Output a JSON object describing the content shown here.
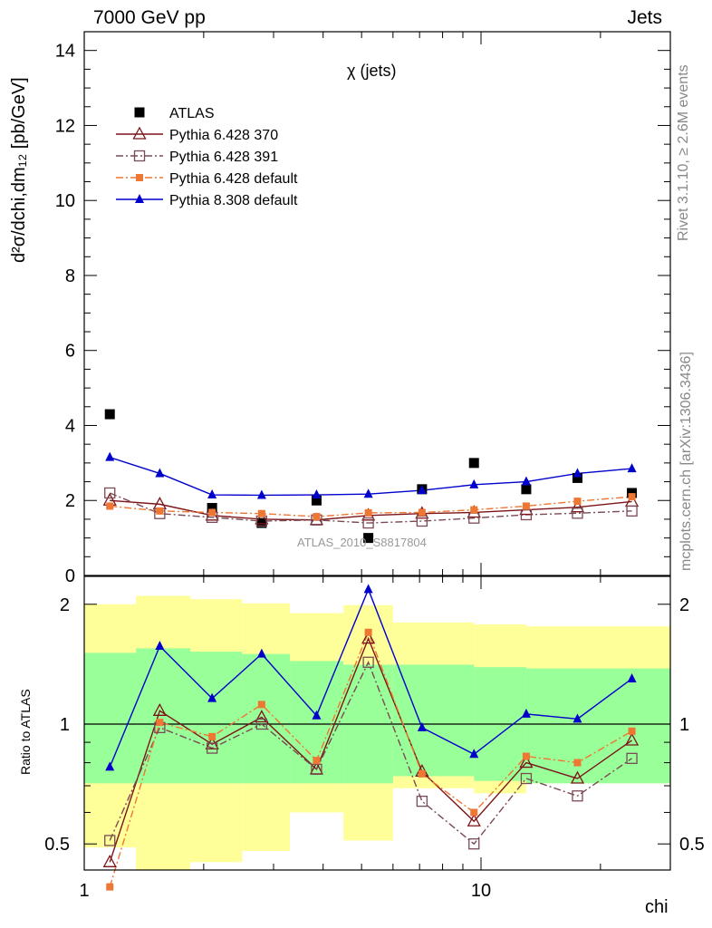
{
  "header": {
    "left": "7000 GeV pp",
    "right": "Jets"
  },
  "side_labels": {
    "rivet": "Rivet 3.1.10, ≥ 2.6M events",
    "mcplots": "mcplots.cern.ch [arXiv:1306.3436]"
  },
  "colors": {
    "atlas": "#000000",
    "p370": "#7b1418",
    "p391": "#7a4a55",
    "p6def": "#ee7733",
    "p8def": "#0000cc",
    "band_yellow": "#ffff99",
    "band_green": "#99ff99",
    "side_text": "#888888"
  },
  "chart_data": [
    {
      "type": "scatter",
      "title": "χ (jets)",
      "ylabel": "d²σ/dchi,dm₁₂ [pb/GeV]",
      "watermark": "ATLAS_2010_S8817804",
      "xscale": "log",
      "xlim": [
        1,
        30
      ],
      "ylim": [
        0,
        14.5
      ],
      "yticks": [
        0,
        2,
        4,
        6,
        8,
        10,
        12,
        14
      ],
      "legend_placement": "top-left",
      "x": [
        1.16,
        1.55,
        2.1,
        2.8,
        3.85,
        5.2,
        7.1,
        9.6,
        13,
        17.5,
        24
      ],
      "series": [
        {
          "name": "ATLAS",
          "key": "atlas",
          "marker": "filled-square",
          "line": "none",
          "values": [
            4.3,
            null,
            1.8,
            1.4,
            2.0,
            1.0,
            2.3,
            3.0,
            2.3,
            2.6,
            2.2
          ]
        },
        {
          "name": "Pythia 6.428 370",
          "key": "p370",
          "marker": "open-triangle",
          "line": "solid",
          "values": [
            2.0,
            1.9,
            1.6,
            1.5,
            1.48,
            1.6,
            1.65,
            1.68,
            1.75,
            1.82,
            1.97
          ]
        },
        {
          "name": "Pythia 6.428 391",
          "key": "p391",
          "marker": "open-square",
          "line": "dashdot",
          "values": [
            2.2,
            1.65,
            1.55,
            1.45,
            1.48,
            1.4,
            1.45,
            1.53,
            1.62,
            1.66,
            1.72
          ]
        },
        {
          "name": "Pythia 6.428 default",
          "key": "p6def",
          "marker": "small-square",
          "line": "dashdot",
          "values": [
            1.85,
            1.72,
            1.68,
            1.65,
            1.57,
            1.67,
            1.68,
            1.75,
            1.85,
            1.98,
            2.1
          ]
        },
        {
          "name": "Pythia 8.308 default",
          "key": "p8def",
          "marker": "filled-triangle",
          "line": "solid",
          "values": [
            3.15,
            2.72,
            2.15,
            2.14,
            2.15,
            2.17,
            2.27,
            2.42,
            2.5,
            2.72,
            2.85
          ]
        }
      ]
    },
    {
      "type": "line",
      "ylabel": "Ratio to ATLAS",
      "xlabel": "chi",
      "xscale": "log",
      "yscale": "log",
      "xlim": [
        1,
        30
      ],
      "ylim": [
        0.43,
        2.35
      ],
      "yticks": [
        0.5,
        1,
        2
      ],
      "xticks": [
        1,
        10
      ],
      "bin_edges": [
        1,
        1.35,
        1.85,
        2.5,
        3.3,
        4.5,
        6,
        9.6,
        13,
        30
      ],
      "band_yellow": {
        "low": [
          0.49,
          0.38,
          0.45,
          0.48,
          0.6,
          0.51,
          0.69,
          0.67,
          0.71
        ],
        "high": [
          2.0,
          2.1,
          2.06,
          2.01,
          1.9,
          1.99,
          1.8,
          1.78,
          1.76
        ]
      },
      "band_green": {
        "low": [
          0.71,
          0.71,
          0.71,
          0.71,
          0.71,
          0.71,
          0.74,
          0.72,
          0.71
        ],
        "high": [
          1.51,
          1.55,
          1.52,
          1.5,
          1.44,
          1.41,
          1.41,
          1.39,
          1.38
        ]
      },
      "x": [
        1.16,
        1.55,
        2.1,
        2.8,
        3.85,
        5.2,
        7.1,
        9.6,
        13,
        17.5,
        24
      ],
      "series": [
        {
          "name": "Pythia 6.428 370",
          "key": "p370",
          "marker": "open-triangle",
          "line": "solid",
          "values": [
            0.45,
            1.08,
            0.89,
            1.04,
            0.77,
            1.64,
            0.76,
            0.57,
            0.8,
            0.73,
            0.91
          ]
        },
        {
          "name": "Pythia 6.428 391",
          "key": "p391",
          "marker": "open-square",
          "line": "dashdot",
          "values": [
            0.51,
            0.98,
            0.87,
            1.0,
            0.77,
            1.43,
            0.64,
            0.5,
            0.73,
            0.66,
            0.82
          ]
        },
        {
          "name": "Pythia 6.428 default",
          "key": "p6def",
          "marker": "small-square",
          "line": "dashdot",
          "values": [
            0.39,
            1.01,
            0.93,
            1.12,
            0.81,
            1.7,
            0.75,
            0.6,
            0.83,
            0.8,
            0.96
          ]
        },
        {
          "name": "Pythia 8.308 default",
          "key": "p8def",
          "marker": "filled-triangle",
          "line": "solid",
          "values": [
            0.78,
            1.57,
            1.16,
            1.5,
            1.05,
            2.18,
            0.98,
            0.84,
            1.06,
            1.03,
            1.3
          ]
        }
      ]
    }
  ]
}
